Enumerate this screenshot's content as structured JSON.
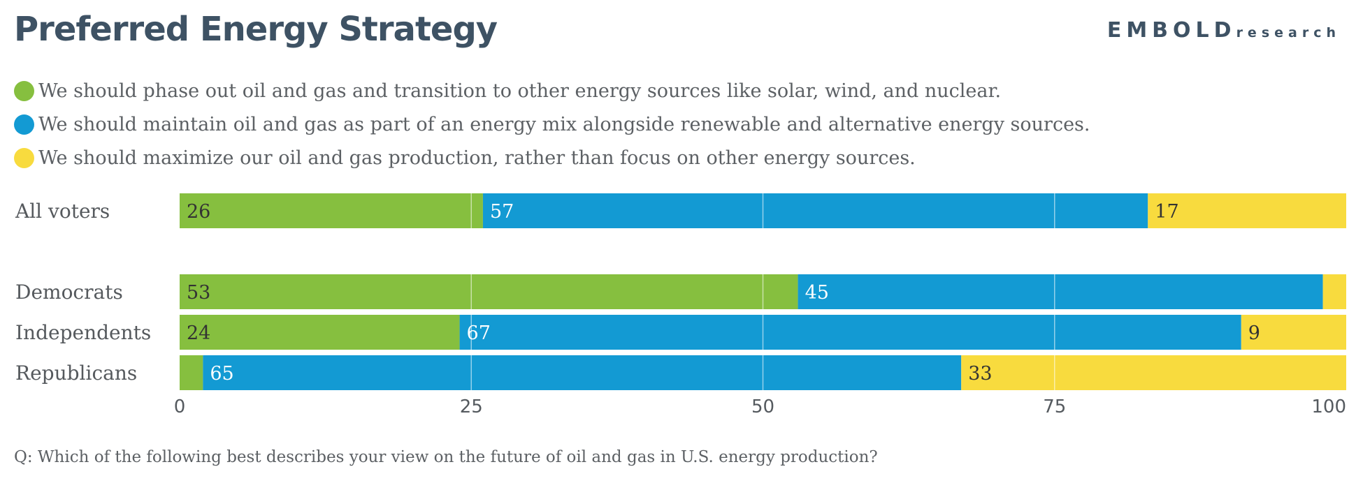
{
  "title": "Preferred Energy Strategy",
  "brand": {
    "main": "EMBOLD",
    "sub": "research"
  },
  "legend": [
    {
      "color": "#86bf3f",
      "label": "We should phase out oil and gas and transition to other energy sources like solar, wind, and nuclear."
    },
    {
      "color": "#139ad3",
      "label": "We should maintain oil and gas as part of an energy mix alongside renewable and alternative energy sources."
    },
    {
      "color": "#f8db3e",
      "label": "We should maximize our oil and gas production, rather than focus on other energy sources."
    }
  ],
  "question": "Q: Which of the following best describes your view on the future of oil and gas in U.S. energy production?",
  "chart_data": {
    "type": "bar",
    "orientation": "horizontal",
    "stacked": true,
    "title": "Preferred Energy Strategy",
    "categories": [
      "All voters",
      "Democrats",
      "Independents",
      "Republicans"
    ],
    "series": [
      {
        "name": "Phase out oil and gas",
        "color": "#86bf3f",
        "values": [
          26,
          53,
          24,
          2
        ],
        "labels": [
          "26",
          "53",
          "24",
          ""
        ]
      },
      {
        "name": "Maintain oil and gas in mix",
        "color": "#139ad3",
        "values": [
          57,
          45,
          67,
          65
        ],
        "labels": [
          "57",
          "45",
          "67",
          "65"
        ]
      },
      {
        "name": "Maximize oil and gas production",
        "color": "#f8db3e",
        "values": [
          17,
          2,
          9,
          33
        ],
        "labels": [
          "17",
          "",
          "9",
          "33"
        ]
      }
    ],
    "xlim": [
      0,
      100
    ],
    "xticks": [
      0,
      25,
      50,
      75,
      100
    ],
    "grid": true,
    "legend_position": "top"
  }
}
